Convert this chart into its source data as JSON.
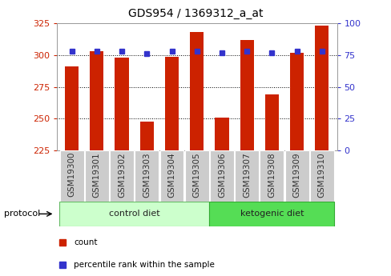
{
  "title": "GDS954 / 1369312_a_at",
  "samples": [
    "GSM19300",
    "GSM19301",
    "GSM19302",
    "GSM19303",
    "GSM19304",
    "GSM19305",
    "GSM19306",
    "GSM19307",
    "GSM19308",
    "GSM19309",
    "GSM19310"
  ],
  "count_values": [
    291,
    303,
    298,
    248,
    299,
    318,
    251,
    312,
    269,
    302,
    323
  ],
  "percentile_values": [
    78,
    78,
    78,
    76,
    78,
    78,
    77,
    78,
    77,
    78,
    78
  ],
  "ylim_left": [
    225,
    325
  ],
  "ylim_right": [
    0,
    100
  ],
  "yticks_left": [
    225,
    250,
    275,
    300,
    325
  ],
  "yticks_right": [
    0,
    25,
    50,
    75,
    100
  ],
  "bar_color": "#cc2200",
  "dot_color": "#3333cc",
  "plot_bg_color": "#ffffff",
  "control_diet_label": "control diet",
  "ketogenic_diet_label": "ketogenic diet",
  "protocol_label": "protocol",
  "legend_count_label": "count",
  "legend_percentile_label": "percentile rank within the sample",
  "tick_label_color_left": "#cc2200",
  "tick_label_color_right": "#3333cc",
  "bar_width": 0.55,
  "n_ctrl": 6,
  "control_bg": "#ccffcc",
  "ketogenic_bg": "#55dd55",
  "sample_box_color": "#cccccc",
  "title_fontsize": 10,
  "axis_fontsize": 8,
  "label_fontsize": 7.5,
  "legend_fontsize": 7.5
}
